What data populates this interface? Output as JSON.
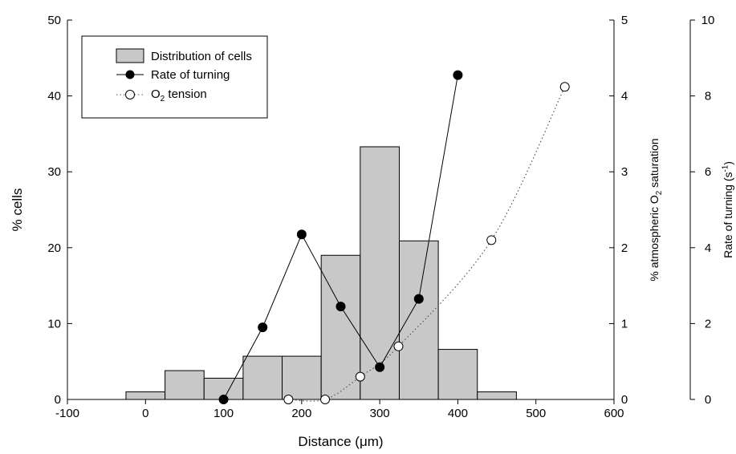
{
  "chart_data": {
    "type": "bar",
    "xlabel": "Distance (μm)",
    "ylabel": "% cells",
    "y2label_parts": [
      "% atmospheric O",
      "2",
      " saturation"
    ],
    "y3label_parts": [
      "Rate of turning (s",
      "-1",
      ")"
    ],
    "xlim": [
      -100,
      600
    ],
    "ylim": [
      0,
      50
    ],
    "y2lim": [
      0,
      5
    ],
    "y3lim": [
      0,
      10
    ],
    "x_ticks": [
      "-100",
      "0",
      "100",
      "200",
      "300",
      "400",
      "500",
      "600"
    ],
    "y_ticks": [
      "0",
      "10",
      "20",
      "30",
      "40",
      "50"
    ],
    "y2_ticks": [
      "0",
      "1",
      "2",
      "3",
      "4",
      "5"
    ],
    "y3_ticks": [
      "0",
      "2",
      "4",
      "6",
      "8",
      "10"
    ],
    "bars": {
      "name": "Distribution of cells",
      "color": "#c8c8c8",
      "bin_width": 50,
      "bin_centers": [
        0,
        50,
        100,
        150,
        200,
        250,
        300,
        350,
        400,
        450
      ],
      "values": [
        1.0,
        3.8,
        2.8,
        5.7,
        5.7,
        19.0,
        33.3,
        20.9,
        6.6,
        1.0
      ]
    },
    "series": [
      {
        "name": "Rate of turning",
        "axis": "y3",
        "marker": "filled-circle",
        "line": "solid",
        "x": [
          100,
          150,
          200,
          250,
          300,
          350,
          400
        ],
        "y": [
          0.0,
          1.9,
          4.35,
          2.45,
          0.85,
          2.65,
          8.55
        ]
      },
      {
        "name_parts": [
          "O",
          "2",
          " tension"
        ],
        "axis": "y2",
        "marker": "open-circle",
        "line": "dotted",
        "x": [
          183,
          230,
          275,
          324,
          443,
          537
        ],
        "y": [
          0.0,
          0.0,
          0.3,
          0.7,
          2.1,
          4.12
        ]
      }
    ],
    "legend": {
      "placement": "top-left",
      "labels": [
        "Distribution of cells",
        "Rate of turning"
      ],
      "o2_label_parts": [
        "O",
        "2",
        " tension"
      ]
    }
  }
}
